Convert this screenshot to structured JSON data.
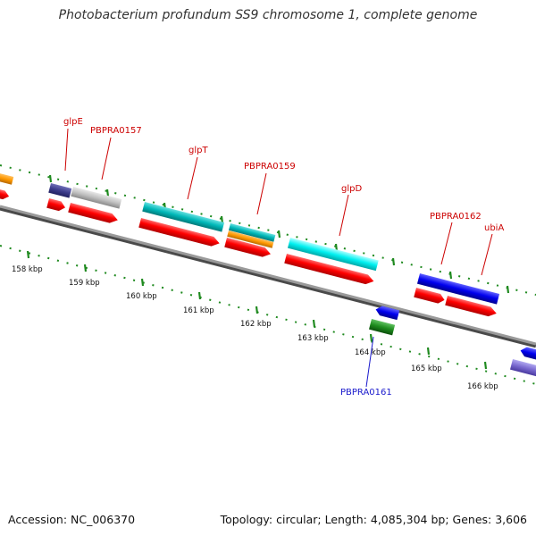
{
  "title": "Photobacterium profundum SS9 chromosome 1, complete genome",
  "footer": {
    "accession": "Accession: NC_006370",
    "topology": "Topology: circular; Length: 4,085,304 bp; Genes: 3,606"
  },
  "colors": {
    "backbone": "#7a7a7a",
    "tick": "#1f8a1f",
    "label_forward": "#cc0000",
    "label_reverse": "#1a1acc",
    "cds": "#ff0000",
    "cyan": "#00cccc",
    "orange": "#ff9900",
    "gray": "#c0c0c0",
    "navy": "#3d3d8c",
    "blue": "#0000ee",
    "green": "#1e8c1e",
    "lavender": "#7a6ad0"
  },
  "ticks": [
    {
      "label": "158 kbp"
    },
    {
      "label": "159 kbp"
    },
    {
      "label": "160 kbp"
    },
    {
      "label": "161 kbp"
    },
    {
      "label": "162 kbp"
    },
    {
      "label": "163 kbp"
    },
    {
      "label": "164 kbp"
    },
    {
      "label": "165 kbp"
    },
    {
      "label": "166 kbp"
    }
  ],
  "gene_labels": [
    {
      "text": "glpE",
      "strand": "forward"
    },
    {
      "text": "PBPRA0157",
      "strand": "forward"
    },
    {
      "text": "glpT",
      "strand": "forward"
    },
    {
      "text": "PBPRA0159",
      "strand": "forward"
    },
    {
      "text": "glpD",
      "strand": "forward"
    },
    {
      "text": "PBPRA0162",
      "strand": "forward"
    },
    {
      "text": "ubiA",
      "strand": "forward"
    },
    {
      "text": "PBPRA0161",
      "strand": "reverse"
    }
  ]
}
